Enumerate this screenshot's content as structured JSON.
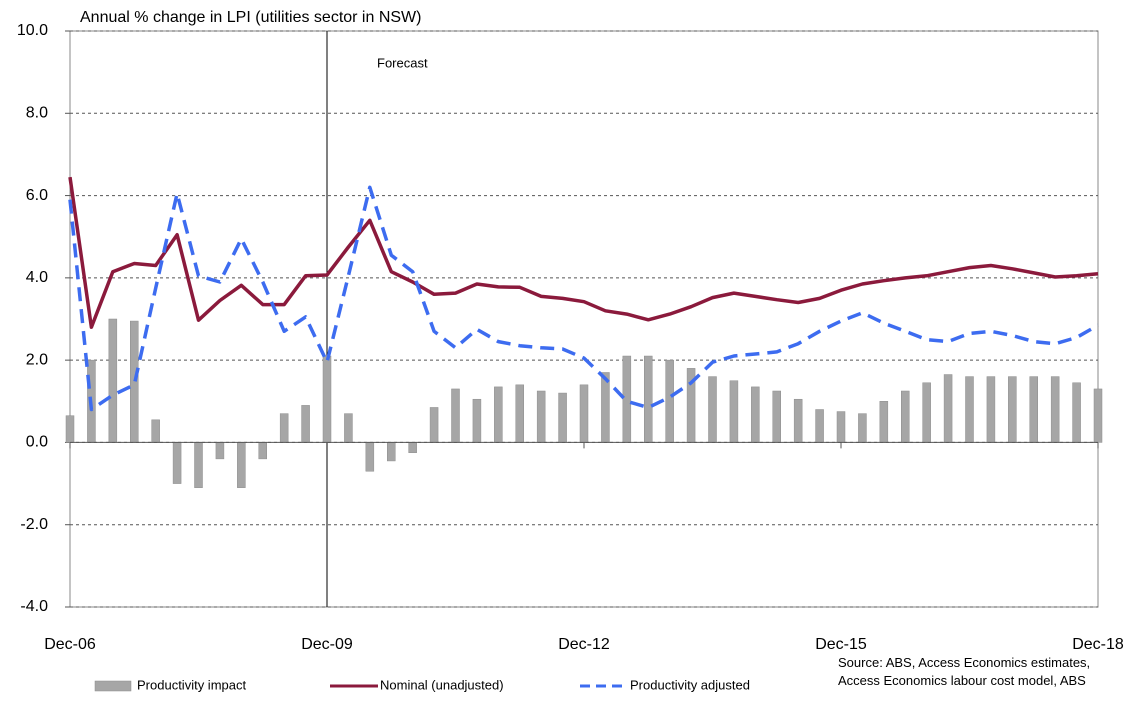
{
  "chart_data": {
    "type": "bar-line",
    "title": "Annual % change in LPI (utilities sector in NSW)",
    "annotations": [
      "Forecast"
    ],
    "source": "Source: ABS, Access Economics estimates, Access Economics labour cost model, ABS",
    "categories": [
      "Dec-06",
      null,
      null,
      null,
      null,
      null,
      null,
      null,
      null,
      null,
      null,
      null,
      "Dec-09",
      null,
      null,
      null,
      null,
      null,
      null,
      null,
      null,
      null,
      null,
      null,
      "Dec-12",
      null,
      null,
      null,
      null,
      null,
      null,
      null,
      null,
      null,
      null,
      null,
      "Dec-15",
      null,
      null,
      null,
      null,
      null,
      null,
      null,
      null,
      null,
      null,
      null,
      "Dec-18"
    ],
    "series": [
      {
        "name": "Productivity impact",
        "type": "bar",
        "color": "#a6a6a6",
        "values": [
          0.65,
          2.0,
          3.0,
          2.95,
          0.55,
          -1.0,
          -1.1,
          -0.4,
          -1.1,
          -0.4,
          0.7,
          0.9,
          2.1,
          0.7,
          -0.7,
          -0.45,
          -0.25,
          0.85,
          1.3,
          1.05,
          1.35,
          1.4,
          1.25,
          1.2,
          1.4,
          1.7,
          2.1,
          2.1,
          2.0,
          1.8,
          1.6,
          1.5,
          1.35,
          1.25,
          1.05,
          0.8,
          0.75,
          0.7,
          1.0,
          1.25,
          1.45,
          1.65,
          1.6,
          1.6,
          1.6,
          1.6,
          1.6,
          1.45,
          1.3
        ]
      },
      {
        "name": "Nominal (unadjusted)",
        "type": "line",
        "color": "#8b1a3c",
        "values": [
          6.45,
          2.8,
          4.15,
          4.35,
          4.3,
          5.05,
          2.97,
          3.45,
          3.82,
          3.35,
          3.35,
          4.05,
          4.07,
          4.75,
          5.4,
          4.15,
          3.9,
          3.6,
          3.63,
          3.85,
          3.78,
          3.77,
          3.55,
          3.5,
          3.42,
          3.2,
          3.12,
          2.98,
          3.12,
          3.3,
          3.52,
          3.63,
          3.55,
          3.47,
          3.4,
          3.5,
          3.7,
          3.85,
          3.93,
          4.0,
          4.05,
          4.15,
          4.25,
          4.3,
          4.22,
          4.12,
          4.02,
          4.05,
          4.1
        ]
      },
      {
        "name": "Productivity adjusted",
        "type": "line",
        "dashed": true,
        "color": "#3d6cf0",
        "values": [
          5.9,
          0.8,
          1.15,
          1.4,
          3.75,
          6.05,
          4.05,
          3.9,
          4.95,
          3.9,
          2.7,
          3.05,
          1.95,
          4.05,
          6.2,
          4.55,
          4.15,
          2.7,
          2.3,
          2.75,
          2.45,
          2.35,
          2.3,
          2.27,
          2.05,
          1.55,
          1.0,
          0.85,
          1.1,
          1.45,
          1.95,
          2.1,
          2.15,
          2.2,
          2.4,
          2.7,
          2.95,
          3.15,
          2.9,
          2.7,
          2.5,
          2.45,
          2.65,
          2.7,
          2.6,
          2.45,
          2.4,
          2.55,
          2.85
        ]
      }
    ],
    "ylim": [
      -4,
      10
    ],
    "yticks": [
      {
        "value": -4,
        "label": "-4.0"
      },
      {
        "value": -2,
        "label": "-2.0"
      },
      {
        "value": 0,
        "label": "0.0"
      },
      {
        "value": 2,
        "label": "2.0"
      },
      {
        "value": 4,
        "label": "4.0"
      },
      {
        "value": 6,
        "label": "6.0"
      },
      {
        "value": 8,
        "label": "8.0"
      },
      {
        "value": 10,
        "label": "10.0"
      }
    ],
    "grid": true
  }
}
